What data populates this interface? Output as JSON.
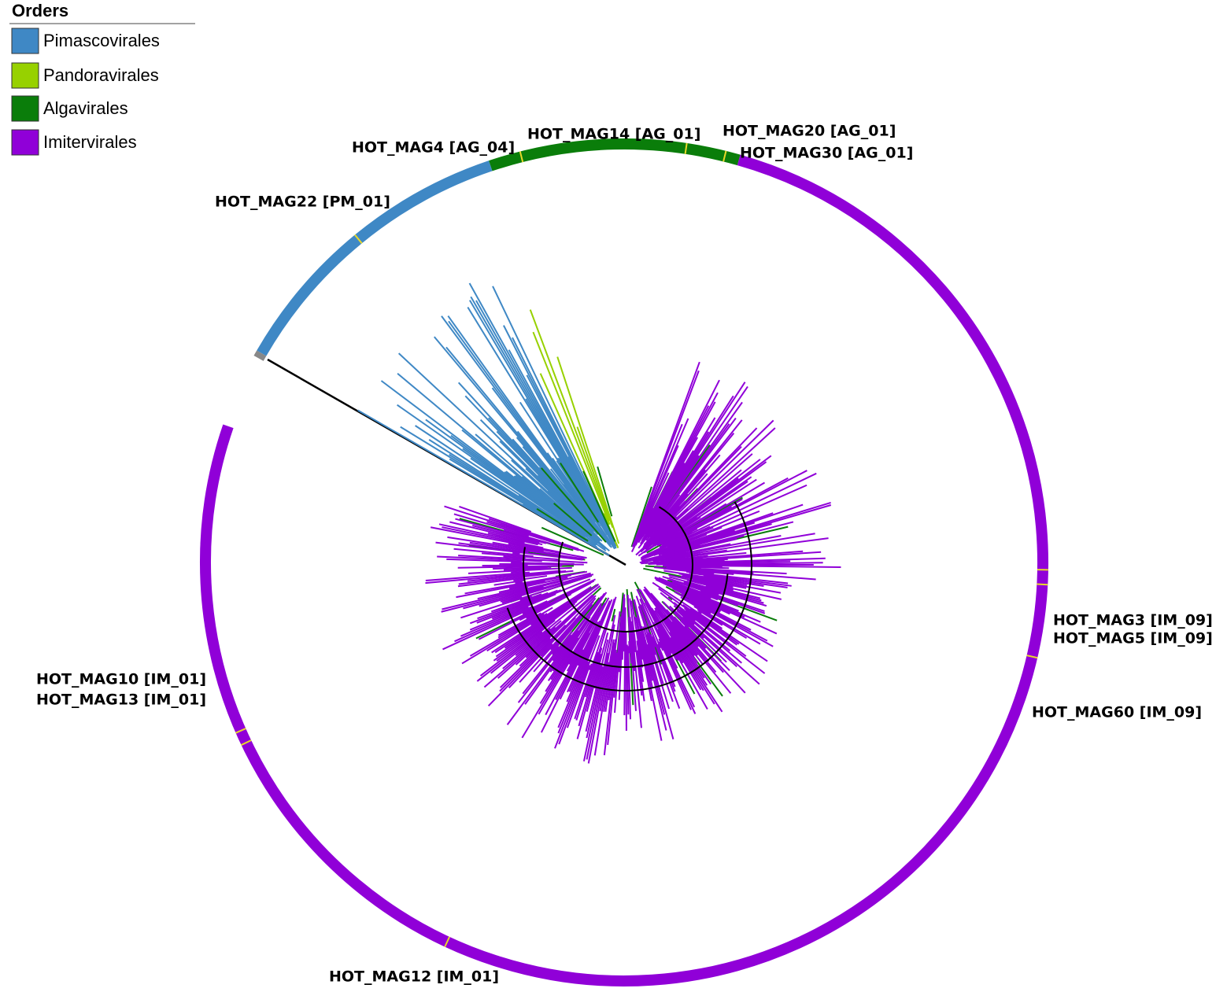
{
  "legend": {
    "title": "Orders",
    "items": [
      {
        "name": "Pimascovirales",
        "color": "#3f88c5"
      },
      {
        "name": "Pandoravirales",
        "color": "#97d100"
      },
      {
        "name": "Algavirales",
        "color": "#0a7d0a"
      },
      {
        "name": "Imitervirales",
        "color": "#9000d8"
      }
    ]
  },
  "labels": [
    "HOT_MAG4 [AG_04]",
    "HOT_MAG14 [AG_01]",
    "HOT_MAG20 [AG_01]",
    "HOT_MAG30 [AG_01]",
    "HOT_MAG22 [PM_01]",
    "HOT_MAG3 [IM_09]",
    "HOT_MAG5 [IM_09]",
    "HOT_MAG60 [IM_09]",
    "HOT_MAG10 [IM_01]",
    "HOT_MAG13 [IM_01]",
    "HOT_MAG12 [IM_01]"
  ]
}
